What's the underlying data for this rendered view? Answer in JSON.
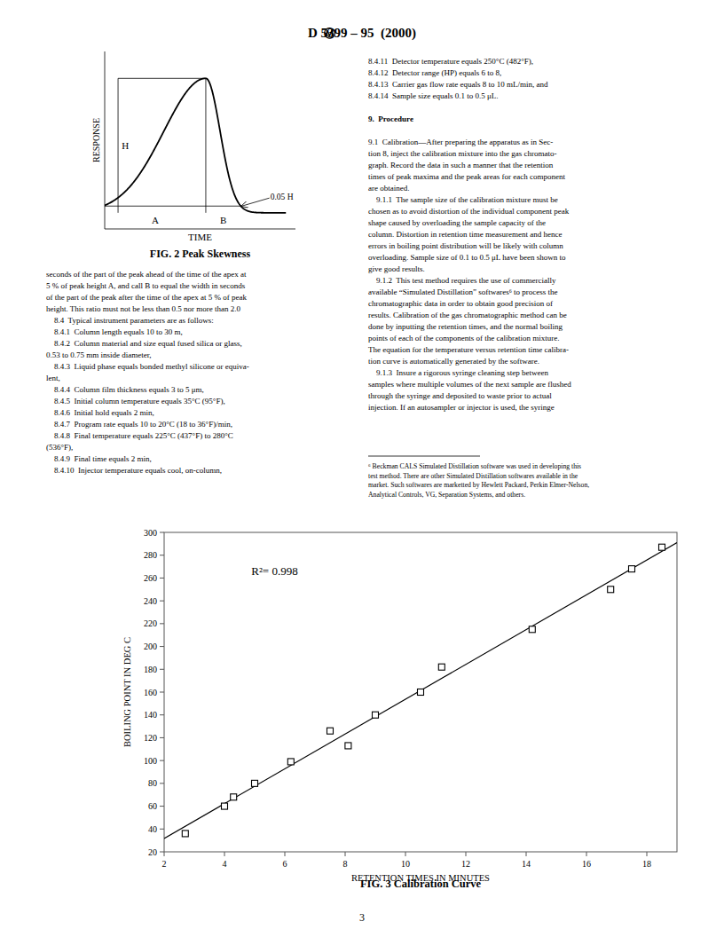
{
  "page": {
    "logo": "Ⓜ",
    "title": "D 5399 – 95  (2000)",
    "page_number": "3",
    "background_color": "#ffffff",
    "text_color": "#000000",
    "heading_lines": [
      "9.  Procedure"
    ],
    "columns": [
      [
        "seconds of the part of the peak ahead of the time of the apex at",
        "5 % of peak height A, and call B to equal the width in seconds",
        "of the part of the peak after the time of the apex at 5 % of peak",
        "height. This ratio must not be less than 0.5 nor more than 2.0",
        "    8.4  Typical instrument parameters are as follows:",
        "    8.4.1  Column length equals 10 to 30 m,",
        "    8.4.2  Column material and size equal fused silica or glass,",
        "0.53 to 0.75 mm inside diameter,",
        "    8.4.3  Liquid phase equals bonded methyl silicone or equiva-",
        "lent,",
        "    8.4.4  Column film thickness equals 3 to 5 μm,",
        "    8.4.5  Initial column temperature equals 35°C (95°F),",
        "    8.4.6  Initial hold equals 2 min,",
        "    8.4.7  Program rate equals 10 to 20°C (18 to 36°F)/min,",
        "    8.4.8  Final temperature equals 225°C (437°F) to 280°C",
        "(536°F),",
        "    8.4.9  Final time equals 2 min,",
        "    8.4.10  Injector temperature equals cool, on-column,"
      ],
      [
        "8.4.11  Detector temperature equals 250°C (482°F),",
        "8.4.12  Detector range (HP) equals 6 to 8,",
        "8.4.13  Carrier gas flow rate equals 8 to 10 mL/min, and",
        "8.4.14  Sample size equals 0.1 to 0.5 μL.",
        "",
        "9.  Procedure",
        "",
        "9.1  Calibration—After preparing the apparatus as in Sec-",
        "tion 8, inject the calibration mixture into the gas chromato-",
        "graph. Record the data in such a manner that the retention",
        "times of peak maxima and the peak areas for each component",
        "are obtained.",
        "    9.1.1  The sample size of the calibration mixture must be",
        "chosen as to avoid distortion of the individual component peak",
        "shape caused by overloading the sample capacity of the",
        "column. Distortion in retention time measurement and hence",
        "errors in boiling point distribution will be likely with column",
        "overloading. Sample size of 0.1 to 0.5 μL have been shown to",
        "give good results.",
        "    9.1.2  This test method requires the use of commercially",
        "available “Simulated Distillation” softwares⁶ to process the",
        "chromatographic data in order to obtain good precision of",
        "results. Calibration of the gas chromatographic method can be",
        "done by inputting the retention times, and the normal boiling",
        "points of each of the components of the calibration mixture.",
        "The equation for the temperature versus retention time calibra-",
        "tion curve is automatically generated by the software.",
        "    9.1.3  Insure a rigorous syringe cleaning step between",
        "samples where multiple volumes of the next sample are flushed",
        "through the syringe and deposited to waste prior to actual",
        "injection. If an autosampler or injector is used, the syringe"
      ]
    ],
    "footnote_lines": [
      "⁶ Beckman CALS Simulated Distillation software was used in developing this",
      "test method. There are other Simulated Distillation softwares available in the",
      "market. Such softwares are marketted by Hewlett Packard, Perkin Elmer-Nelson,",
      "Analytical Controls, VG, Separation Systems, and others."
    ]
  },
  "chart_data": [
    {
      "type": "diagram",
      "title": "FIG. 2 Peak Skewness",
      "xlabel": "TIME",
      "ylabel": "RESPONSE",
      "annotations": [
        "H",
        "A",
        "B",
        "0.05 H"
      ],
      "tick_labels": false
    },
    {
      "type": "scatter",
      "title": "FIG. 3 Calibration Curve",
      "xlabel": "RETENTION TIMES IN MINUTES",
      "ylabel": "BOILING POINT IN DEG C",
      "annotations": [
        "R²= 0.998"
      ],
      "x": [
        2.7,
        4.0,
        4.3,
        5.0,
        6.2,
        7.5,
        8.1,
        9.0,
        10.5,
        11.2,
        14.2,
        16.8,
        17.5,
        18.5
      ],
      "values": [
        36,
        60,
        68,
        80,
        99,
        126,
        113,
        140,
        160,
        182,
        215,
        250,
        268,
        287
      ],
      "marker": "square",
      "color": "#000000",
      "fit_line": {
        "x": [
          2,
          19
        ],
        "values": [
          31.7,
          291.08
        ]
      },
      "xlim": [
        2,
        19
      ],
      "ylim": [
        20,
        300
      ],
      "xticks": [
        2,
        4,
        6,
        8,
        10,
        12,
        14,
        16,
        18
      ],
      "yticks": [
        20,
        40,
        60,
        80,
        100,
        120,
        140,
        160,
        180,
        200,
        220,
        240,
        260,
        280,
        300
      ],
      "grid": false
    }
  ]
}
